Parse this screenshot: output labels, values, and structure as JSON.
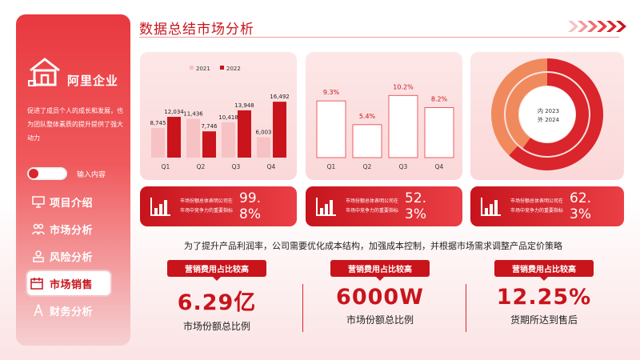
{
  "header": {
    "title": "数据总结市场分析"
  },
  "sidebar": {
    "company": "阿里企业",
    "description": "促进了成员个人的成长和发展，也为团队整体素质的提升提供了强大动力",
    "input_label": "输入内容",
    "nav": [
      {
        "label": "项目介绍",
        "icon": "presentation-icon"
      },
      {
        "label": "市场分析",
        "icon": "team-icon"
      },
      {
        "label": "风险分析",
        "icon": "risk-icon"
      },
      {
        "label": "市场销售",
        "icon": "calendar-icon",
        "active": true
      },
      {
        "label": "财务分析",
        "icon": "compass-icon"
      }
    ]
  },
  "chart_data": [
    {
      "type": "bar",
      "categories": [
        "Q1",
        "Q2",
        "Q3",
        "Q4"
      ],
      "series": [
        {
          "name": "2021",
          "values": [
            8745,
            11436,
            10418,
            6003
          ],
          "color": "#f6c2c4"
        },
        {
          "name": "2022",
          "values": [
            12034,
            7746,
            13948,
            16492
          ],
          "color": "#c9141c"
        }
      ],
      "data_labels": [
        [
          "8,745",
          "11,436",
          "10,418",
          "6,003"
        ],
        [
          "12,034",
          "7,746",
          "13,948",
          "16,492"
        ]
      ],
      "legend": "top"
    },
    {
      "type": "bar",
      "categories": [
        "Q1",
        "Q2",
        "Q3",
        "Q4"
      ],
      "values": [
        9.3,
        5.4,
        10.2,
        8.2
      ],
      "data_labels": [
        "9.3%",
        "5.4%",
        "10.2%",
        "8.2%"
      ]
    },
    {
      "type": "pie",
      "labels": [
        "内 2023",
        "外 2024"
      ],
      "rings": [
        {
          "name": "2023",
          "values": [
            60,
            40
          ]
        },
        {
          "name": "2024",
          "values": [
            62,
            38
          ]
        }
      ],
      "colors": {
        "primary": "#d9252b",
        "secondary": "#f08a5d"
      }
    }
  ],
  "stats": [
    {
      "text": "市场份额总体表明公司在市场中竞争力的重要指标",
      "value": "99.8%"
    },
    {
      "text": "市场份额总体表明公司在市场中竞争力的重要指标",
      "value": "52.3%"
    },
    {
      "text": "市场份额总体表明公司在市场中竞争力的重要指标",
      "value": "62.3%"
    }
  ],
  "strategy": "为了提升产品利润率，公司需要优化成本结构，加强成本控制，并根据市场需求调整产品定价策略",
  "kpis": [
    {
      "pill": "营销费用占比较高",
      "value": "6.29亿",
      "label": "市场份额总比例"
    },
    {
      "pill": "营销费用占比较高",
      "value": "6000W",
      "label": "市场份额总比例"
    },
    {
      "pill": "营销费用占比较高",
      "value": "12.25%",
      "label": "货期所达到售后"
    }
  ],
  "colors": {
    "accent": "#c9141c",
    "light": "#fde7e7"
  }
}
